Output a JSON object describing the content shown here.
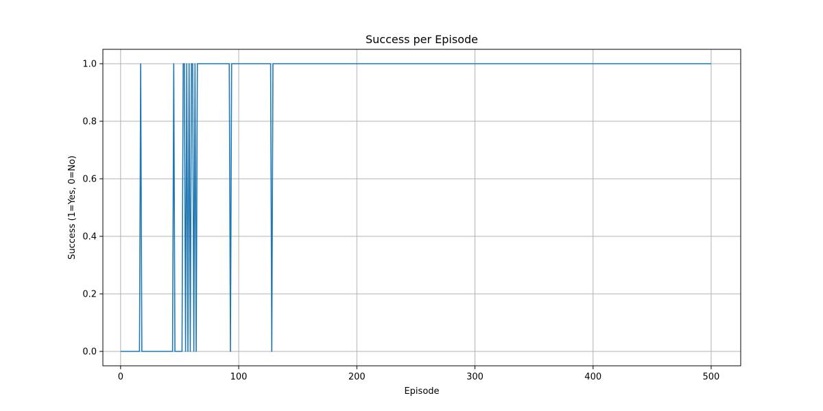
{
  "chart_data": {
    "type": "line",
    "title": "Success per Episode",
    "xlabel": "Episode",
    "ylabel": "Success (1=Yes, 0=No)",
    "xlim": [
      -15,
      525
    ],
    "ylim": [
      -0.05,
      1.05
    ],
    "grid": true,
    "xticks": [
      0,
      100,
      200,
      300,
      400,
      500
    ],
    "yticks": [
      0.0,
      0.2,
      0.4,
      0.6,
      0.8,
      1.0
    ],
    "xtick_labels": [
      "0",
      "100",
      "200",
      "300",
      "400",
      "500"
    ],
    "ytick_labels": [
      "0.0",
      "0.2",
      "0.4",
      "0.6",
      "0.8",
      "1.0"
    ],
    "series": [
      {
        "color": "#1f77b4",
        "x": [
          0,
          16,
          17,
          18,
          44,
          45,
          46,
          52,
          53,
          54,
          55,
          56,
          57,
          58,
          59,
          60,
          61,
          62,
          63,
          64,
          65,
          92,
          93,
          94,
          127,
          128,
          129,
          500
        ],
        "y": [
          0,
          0,
          1,
          0,
          0,
          1,
          0,
          0,
          1,
          1,
          0,
          1,
          0,
          1,
          0,
          1,
          1,
          0,
          1,
          0,
          1,
          1,
          0,
          1,
          1,
          0,
          1,
          1
        ]
      }
    ]
  }
}
